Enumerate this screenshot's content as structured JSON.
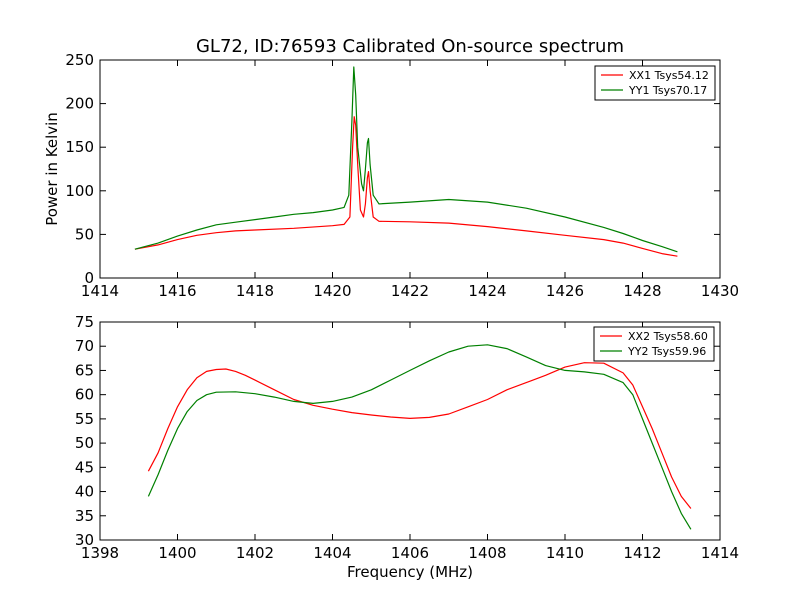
{
  "figure": {
    "title": "GL72, ID:76593 Calibrated On-source spectrum"
  },
  "chart_data": [
    {
      "type": "line",
      "title": "GL72, ID:76593 Calibrated On-source spectrum",
      "xlabel": "",
      "ylabel": "Power in Kelvin",
      "xlim": [
        1414,
        1430
      ],
      "ylim": [
        0,
        250
      ],
      "xticks": [
        1414,
        1416,
        1418,
        1420,
        1422,
        1424,
        1426,
        1428,
        1430
      ],
      "yticks": [
        0,
        50,
        100,
        150,
        200,
        250
      ],
      "grid": false,
      "legend_position": "top-right",
      "series": [
        {
          "name": "XX1 Tsys54.12",
          "color": "#ff0000",
          "points": [
            [
              1414.9,
              33
            ],
            [
              1415.5,
              38
            ],
            [
              1416,
              44
            ],
            [
              1416.5,
              49
            ],
            [
              1417,
              52
            ],
            [
              1417.5,
              54
            ],
            [
              1418,
              55
            ],
            [
              1419,
              57
            ],
            [
              1420,
              60
            ],
            [
              1420.3,
              61.5
            ],
            [
              1420.45,
              70
            ],
            [
              1420.52,
              150
            ],
            [
              1420.56,
              185
            ],
            [
              1420.6,
              175
            ],
            [
              1420.65,
              130
            ],
            [
              1420.72,
              78
            ],
            [
              1420.8,
              70
            ],
            [
              1420.85,
              85
            ],
            [
              1420.9,
              115
            ],
            [
              1420.93,
              122
            ],
            [
              1420.97,
              100
            ],
            [
              1421.05,
              70
            ],
            [
              1421.2,
              65
            ],
            [
              1422,
              64.5
            ],
            [
              1423,
              63
            ],
            [
              1424,
              59
            ],
            [
              1425,
              54
            ],
            [
              1426,
              49
            ],
            [
              1427,
              44
            ],
            [
              1427.5,
              40
            ],
            [
              1428,
              34
            ],
            [
              1428.5,
              28
            ],
            [
              1428.9,
              25
            ]
          ]
        },
        {
          "name": "YY1 Tsys70.17",
          "color": "#008000",
          "points": [
            [
              1414.9,
              33
            ],
            [
              1415.5,
              40
            ],
            [
              1416,
              48
            ],
            [
              1416.5,
              55
            ],
            [
              1417,
              61
            ],
            [
              1417.5,
              64
            ],
            [
              1418,
              67
            ],
            [
              1418.5,
              70
            ],
            [
              1419,
              73
            ],
            [
              1419.5,
              75
            ],
            [
              1420,
              78
            ],
            [
              1420.3,
              81
            ],
            [
              1420.42,
              95
            ],
            [
              1420.5,
              180
            ],
            [
              1420.55,
              242
            ],
            [
              1420.6,
              210
            ],
            [
              1420.65,
              150
            ],
            [
              1420.7,
              130
            ],
            [
              1420.75,
              108
            ],
            [
              1420.8,
              100
            ],
            [
              1420.85,
              125
            ],
            [
              1420.9,
              155
            ],
            [
              1420.93,
              160
            ],
            [
              1420.97,
              130
            ],
            [
              1421.05,
              95
            ],
            [
              1421.2,
              85
            ],
            [
              1422,
              87
            ],
            [
              1423,
              90
            ],
            [
              1424,
              87
            ],
            [
              1425,
              80
            ],
            [
              1426,
              70
            ],
            [
              1427,
              58
            ],
            [
              1427.5,
              51
            ],
            [
              1428,
              43
            ],
            [
              1428.5,
              36
            ],
            [
              1428.9,
              30
            ]
          ]
        }
      ]
    },
    {
      "type": "line",
      "title": "",
      "xlabel": "Frequency (MHz)",
      "ylabel": "",
      "xlim": [
        1398,
        1414
      ],
      "ylim": [
        30,
        75
      ],
      "xticks": [
        1398,
        1400,
        1402,
        1404,
        1406,
        1408,
        1410,
        1412,
        1414
      ],
      "yticks": [
        30,
        35,
        40,
        45,
        50,
        55,
        60,
        65,
        70,
        75
      ],
      "grid": false,
      "legend_position": "top-right",
      "series": [
        {
          "name": "XX2 Tsys58.60",
          "color": "#ff0000",
          "points": [
            [
              1399.25,
              44.2
            ],
            [
              1399.5,
              48
            ],
            [
              1399.75,
              53
            ],
            [
              1400,
              57.5
            ],
            [
              1400.25,
              61
            ],
            [
              1400.5,
              63.5
            ],
            [
              1400.75,
              64.8
            ],
            [
              1401,
              65.2
            ],
            [
              1401.25,
              65.3
            ],
            [
              1401.5,
              64.8
            ],
            [
              1401.75,
              64
            ],
            [
              1402,
              63
            ],
            [
              1402.5,
              61
            ],
            [
              1403,
              59
            ],
            [
              1403.5,
              57.8
            ],
            [
              1404,
              57
            ],
            [
              1404.5,
              56.3
            ],
            [
              1405,
              55.8
            ],
            [
              1405.5,
              55.4
            ],
            [
              1406,
              55.1
            ],
            [
              1406.5,
              55.3
            ],
            [
              1407,
              56
            ],
            [
              1407.5,
              57.5
            ],
            [
              1408,
              59
            ],
            [
              1408.5,
              61
            ],
            [
              1409,
              62.5
            ],
            [
              1409.5,
              64
            ],
            [
              1410,
              65.7
            ],
            [
              1410.5,
              66.6
            ],
            [
              1411,
              66.5
            ],
            [
              1411.5,
              64.5
            ],
            [
              1411.75,
              62
            ],
            [
              1412,
              57.5
            ],
            [
              1412.25,
              53
            ],
            [
              1412.5,
              48
            ],
            [
              1412.75,
              43
            ],
            [
              1413,
              39
            ],
            [
              1413.25,
              36.5
            ]
          ]
        },
        {
          "name": "YY2 Tsys59.96",
          "color": "#008000",
          "points": [
            [
              1399.25,
              39
            ],
            [
              1399.5,
              43.5
            ],
            [
              1399.75,
              48.5
            ],
            [
              1400,
              53
            ],
            [
              1400.25,
              56.5
            ],
            [
              1400.5,
              58.8
            ],
            [
              1400.75,
              60
            ],
            [
              1401,
              60.5
            ],
            [
              1401.5,
              60.6
            ],
            [
              1402,
              60.2
            ],
            [
              1402.5,
              59.5
            ],
            [
              1403,
              58.6
            ],
            [
              1403.5,
              58.2
            ],
            [
              1404,
              58.6
            ],
            [
              1404.5,
              59.5
            ],
            [
              1405,
              61
            ],
            [
              1405.5,
              63
            ],
            [
              1406,
              65
            ],
            [
              1406.5,
              67
            ],
            [
              1407,
              68.8
            ],
            [
              1407.5,
              70
            ],
            [
              1408,
              70.3
            ],
            [
              1408.5,
              69.5
            ],
            [
              1409,
              67.8
            ],
            [
              1409.5,
              66
            ],
            [
              1410,
              65
            ],
            [
              1410.5,
              64.7
            ],
            [
              1411,
              64.2
            ],
            [
              1411.5,
              62.5
            ],
            [
              1411.75,
              60
            ],
            [
              1412,
              55
            ],
            [
              1412.25,
              50
            ],
            [
              1412.5,
              45
            ],
            [
              1412.75,
              40
            ],
            [
              1413,
              35.5
            ],
            [
              1413.25,
              32.2
            ]
          ]
        }
      ]
    }
  ]
}
